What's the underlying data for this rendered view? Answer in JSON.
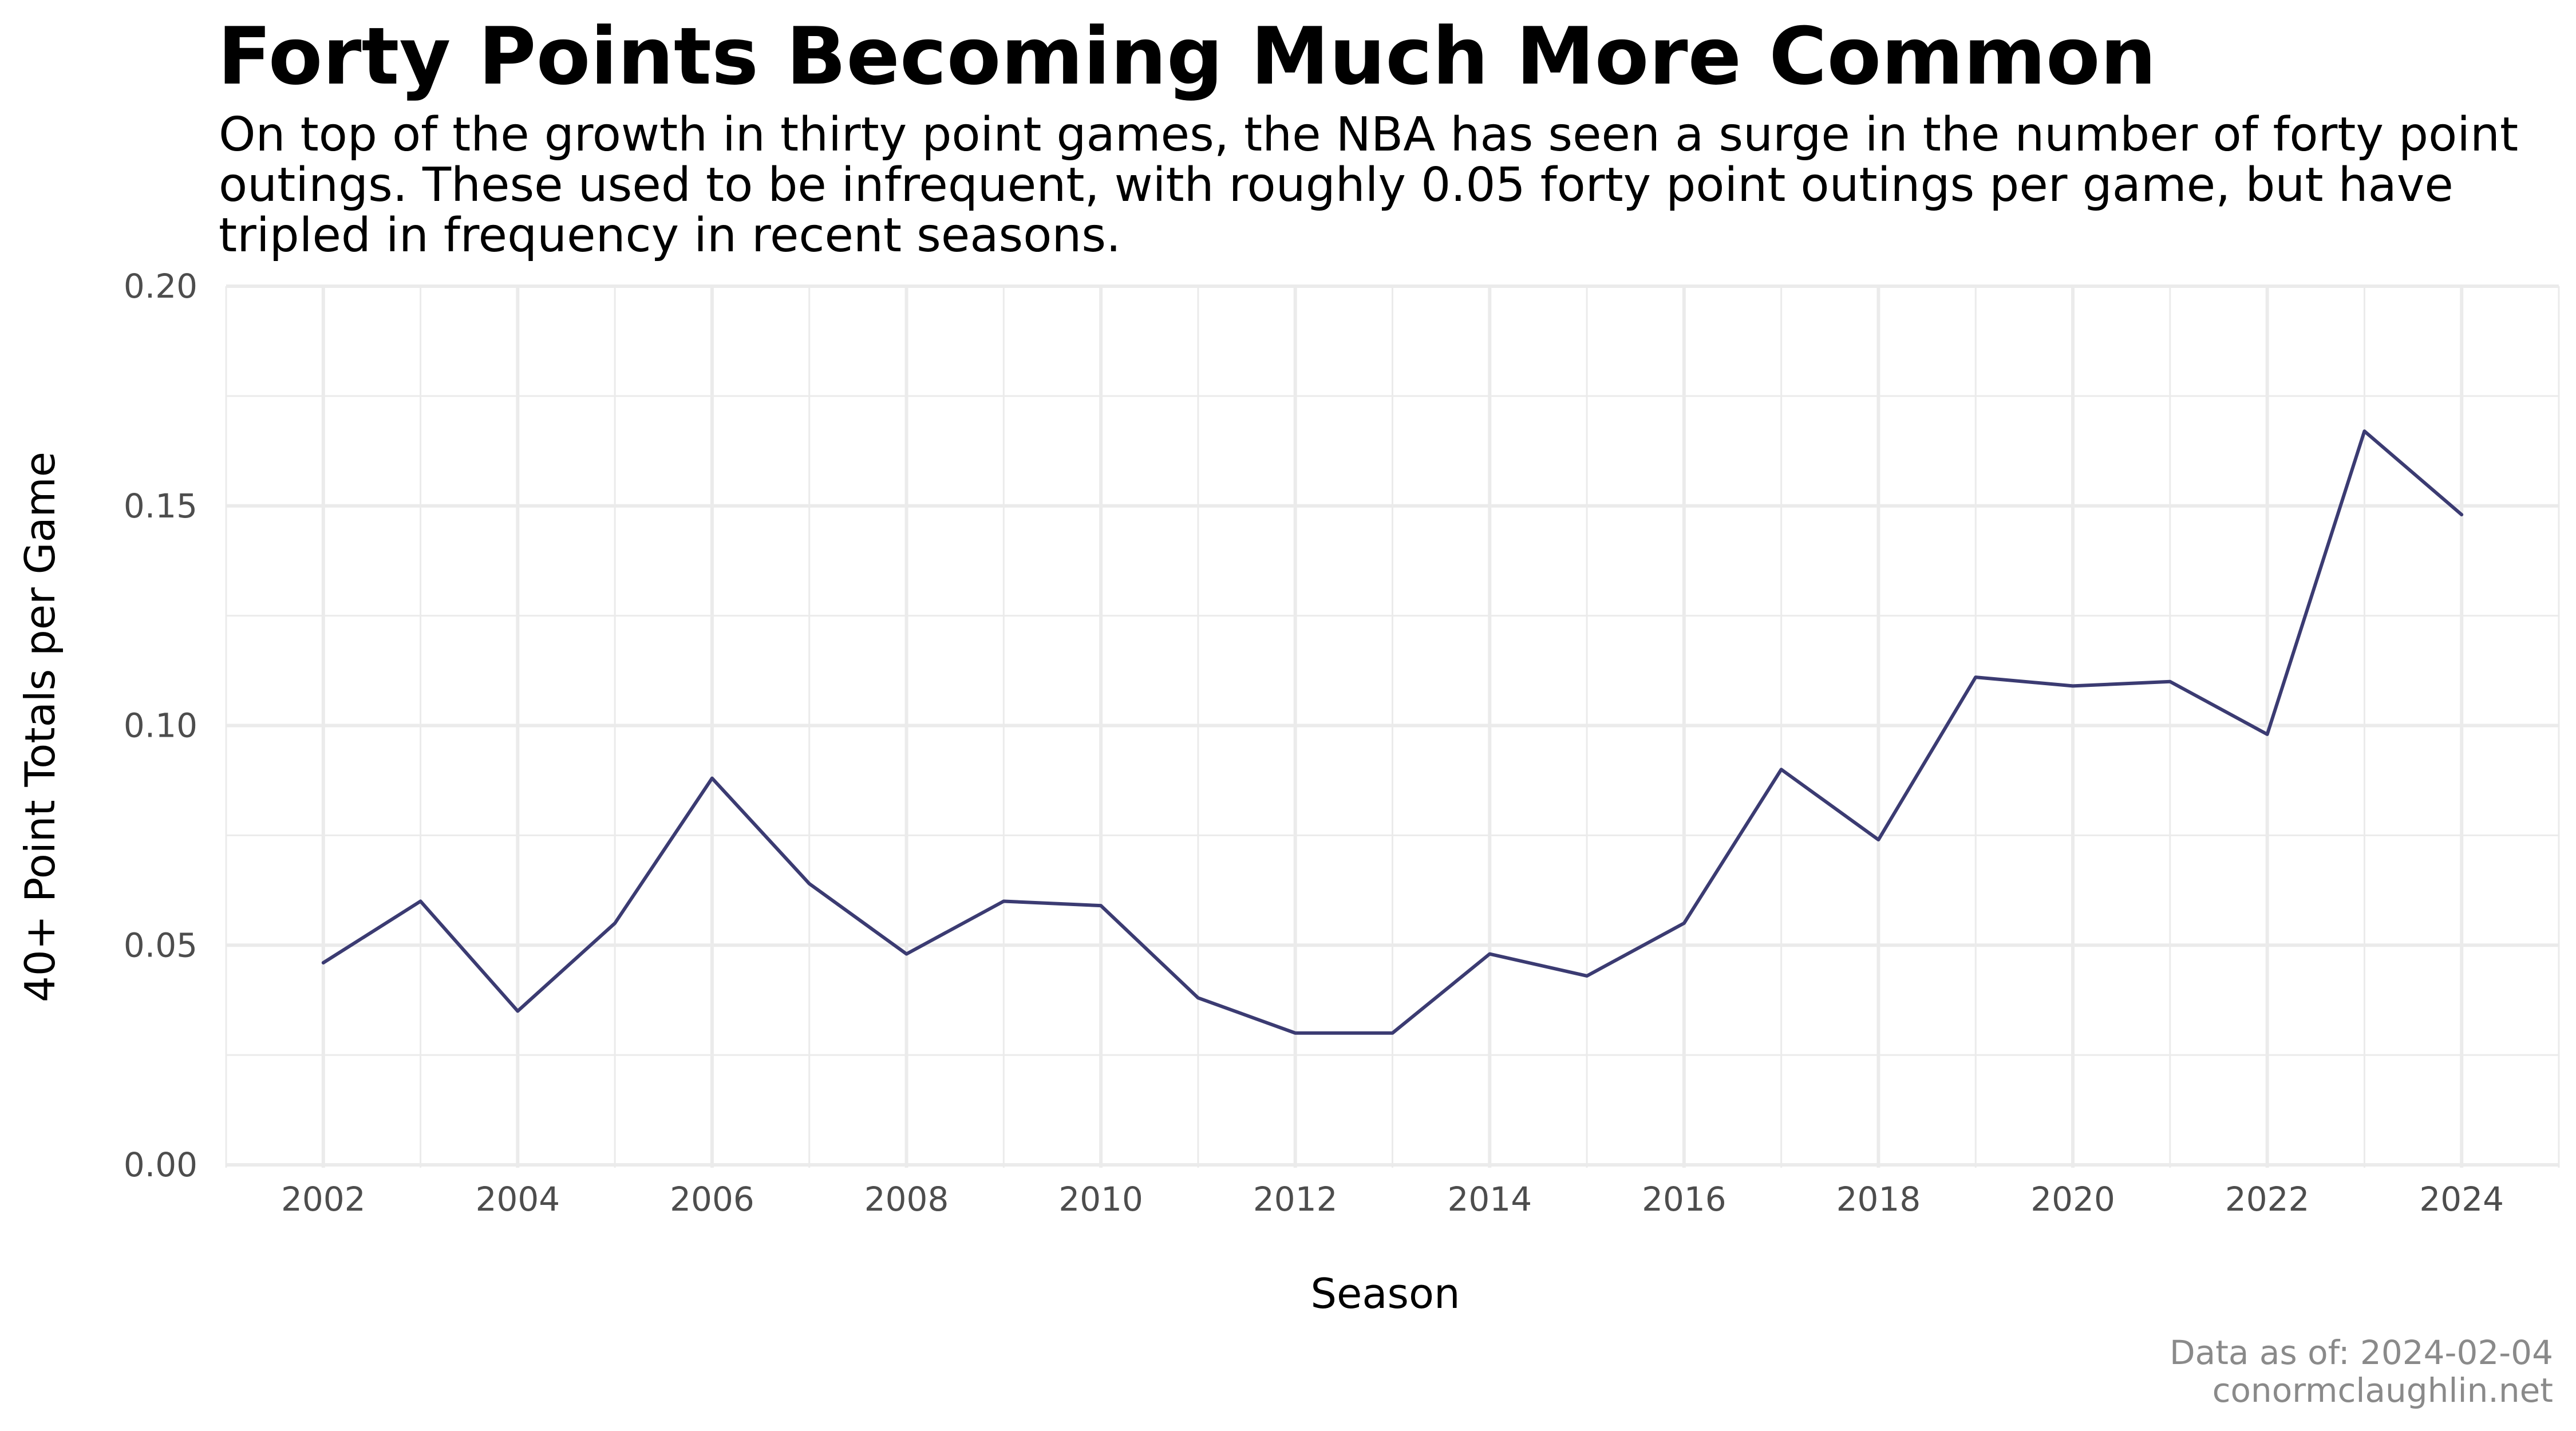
{
  "chart_data": {
    "type": "line",
    "title": "Forty Points Becoming Much More Common",
    "subtitle": "On top of the growth in thirty point games, the NBA has seen a surge in the number of forty point outings. These used to be infrequent, with roughly 0.05 forty point outings per game, but have tripled in frequency in recent seasons.",
    "xlabel": "Season",
    "ylabel": "40+ Point Totals per Game",
    "x": [
      2002,
      2003,
      2004,
      2005,
      2006,
      2007,
      2008,
      2009,
      2010,
      2011,
      2012,
      2013,
      2014,
      2015,
      2016,
      2017,
      2018,
      2019,
      2020,
      2021,
      2022,
      2023,
      2024
    ],
    "series": [
      {
        "values": [
          0.046,
          0.06,
          0.035,
          0.055,
          0.088,
          0.064,
          0.048,
          0.06,
          0.059,
          0.038,
          0.03,
          0.03,
          0.048,
          0.043,
          0.055,
          0.09,
          0.074,
          0.111,
          0.109,
          0.11,
          0.098,
          0.167,
          0.148
        ],
        "color": "#3b3b72"
      }
    ],
    "xlim": [
      2001,
      2025
    ],
    "ylim": [
      0,
      0.2
    ],
    "x_ticks": [
      2002,
      2004,
      2006,
      2008,
      2010,
      2012,
      2014,
      2016,
      2018,
      2020,
      2022,
      2024
    ],
    "x_tick_labels": [
      "2002",
      "2004",
      "2006",
      "2008",
      "2010",
      "2012",
      "2014",
      "2016",
      "2018",
      "2020",
      "2022",
      "2024"
    ],
    "y_ticks": [
      0,
      0.05,
      0.1,
      0.15,
      0.2
    ],
    "y_tick_labels": [
      "0.00",
      "0.05",
      "0.10",
      "0.15",
      "0.20"
    ],
    "grid": true,
    "legend": "none"
  },
  "caption": {
    "line1": "Data as of: 2024-02-04",
    "line2": "conormclaughlin.net"
  }
}
